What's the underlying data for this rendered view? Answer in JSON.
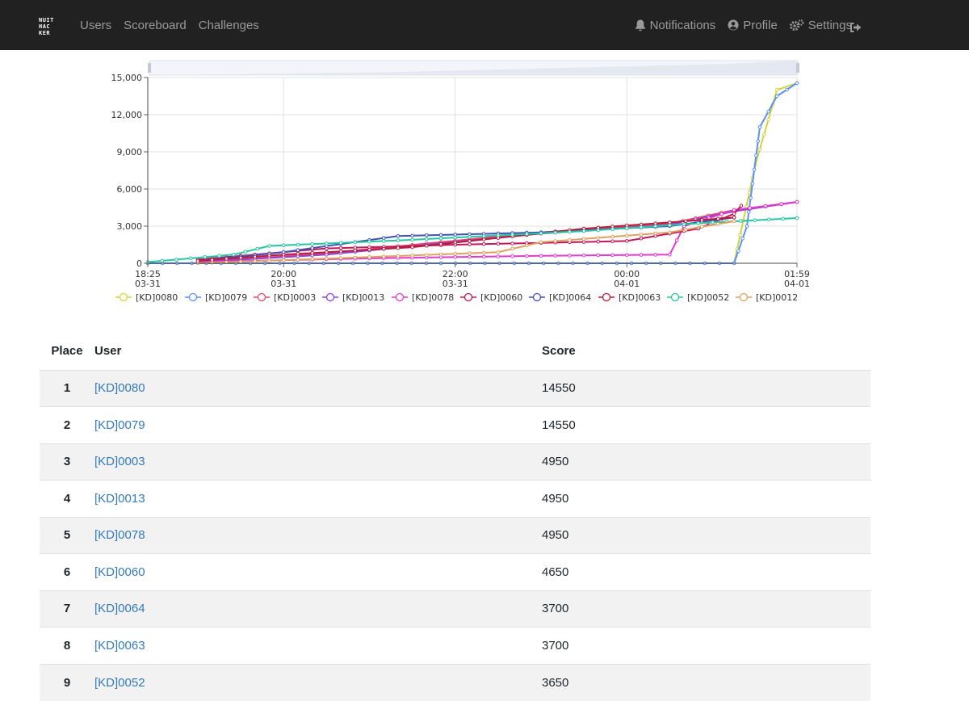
{
  "navbar": {
    "brand_lines": [
      "NUIT",
      "HAC",
      "KER"
    ],
    "links": [
      "Users",
      "Scoreboard",
      "Challenges"
    ],
    "right_links": [
      "Notifications",
      "Profile",
      "Settings"
    ]
  },
  "chart_data": {
    "type": "line",
    "x_ticks": [
      {
        "time": "18:25",
        "date": "03-31"
      },
      {
        "time": "20:00",
        "date": "03-31"
      },
      {
        "time": "22:00",
        "date": "03-31"
      },
      {
        "time": "00:00",
        "date": "04-01"
      },
      {
        "time": "01:59",
        "date": "04-01"
      }
    ],
    "y_ticks": [
      "0",
      "3,000",
      "6,000",
      "9,000",
      "12,000",
      "15,000"
    ],
    "ylim": [
      0,
      15000
    ],
    "xlim": [
      "03-31 18:25",
      "04-01 01:59"
    ],
    "grid": true,
    "legend_position": "bottom",
    "series": [
      {
        "name": "[KD]0080",
        "color": "#d4d438",
        "x": [
          "03-31 18:25",
          "04-01 01:15",
          "04-01 01:30",
          "04-01 01:45",
          "04-01 01:59"
        ],
        "y": [
          0,
          0,
          8000,
          14000,
          14550
        ]
      },
      {
        "name": "[KD]0079",
        "color": "#5b8ff9",
        "x": [
          "03-31 18:25",
          "04-01 01:15",
          "04-01 01:24",
          "04-01 01:33",
          "04-01 01:45",
          "04-01 01:59"
        ],
        "y": [
          0,
          0,
          3000,
          11000,
          13500,
          14550
        ]
      },
      {
        "name": "[KD]0003",
        "color": "#e8486a",
        "x": [
          "03-31 19:00",
          "03-31 20:30",
          "03-31 23:00",
          "04-01 00:30",
          "04-01 01:15",
          "04-01 01:59"
        ],
        "y": [
          100,
          800,
          2500,
          3200,
          4300,
          4950
        ]
      },
      {
        "name": "[KD]0013",
        "color": "#8c44d8",
        "x": [
          "03-31 19:00",
          "03-31 20:30",
          "03-31 23:00",
          "04-01 00:30",
          "04-01 01:15",
          "04-01 01:59"
        ],
        "y": [
          100,
          700,
          2400,
          3100,
          4200,
          4950
        ]
      },
      {
        "name": "[KD]0078",
        "color": "#e23ad0",
        "x": [
          "03-31 19:00",
          "03-31 21:00",
          "03-31 23:00",
          "04-01 00:30",
          "04-01 00:40",
          "04-01 01:15",
          "04-01 01:59"
        ],
        "y": [
          100,
          400,
          600,
          700,
          3000,
          4300,
          4950
        ]
      },
      {
        "name": "[KD]0060",
        "color": "#c2185b",
        "x": [
          "03-31 19:00",
          "03-31 20:30",
          "03-31 22:00",
          "04-01 00:00",
          "04-01 00:50",
          "04-01 01:15",
          "04-01 01:20"
        ],
        "y": [
          300,
          1200,
          1500,
          1800,
          2800,
          4000,
          4650
        ]
      },
      {
        "name": "[KD]0064",
        "color": "#3f51b5",
        "x": [
          "03-31 19:00",
          "03-31 20:00",
          "03-31 21:20",
          "03-31 23:00",
          "04-01 00:30",
          "04-01 01:15"
        ],
        "y": [
          200,
          900,
          2200,
          2500,
          3000,
          3700
        ]
      },
      {
        "name": "[KD]0063",
        "color": "#b71c3c",
        "x": [
          "03-31 19:00",
          "03-31 20:00",
          "03-31 21:30",
          "03-31 23:30",
          "04-01 00:30",
          "04-01 01:15"
        ],
        "y": [
          200,
          700,
          1300,
          2800,
          3300,
          3700
        ]
      },
      {
        "name": "[KD]0052",
        "color": "#26c6a0",
        "x": [
          "03-31 18:25",
          "03-31 19:25",
          "03-31 19:50",
          "03-31 21:30",
          "03-31 23:30",
          "04-01 01:00",
          "04-01 01:59"
        ],
        "y": [
          100,
          700,
          1400,
          1900,
          2600,
          3300,
          3650
        ]
      },
      {
        "name": "[KD]0012",
        "color": "#e0a060",
        "x": [
          "03-31 19:00",
          "03-31 21:00",
          "03-31 22:30",
          "03-31 23:00",
          "04-01 00:30",
          "04-01 01:15"
        ],
        "y": [
          0,
          500,
          900,
          1700,
          2500,
          3400
        ]
      }
    ]
  },
  "table": {
    "headers": [
      "Place",
      "User",
      "Score"
    ],
    "rows": [
      {
        "place": "1",
        "user": "[KD]0080",
        "score": "14550"
      },
      {
        "place": "2",
        "user": "[KD]0079",
        "score": "14550"
      },
      {
        "place": "3",
        "user": "[KD]0003",
        "score": "4950"
      },
      {
        "place": "4",
        "user": "[KD]0013",
        "score": "4950"
      },
      {
        "place": "5",
        "user": "[KD]0078",
        "score": "4950"
      },
      {
        "place": "6",
        "user": "[KD]0060",
        "score": "4650"
      },
      {
        "place": "7",
        "user": "[KD]0064",
        "score": "3700"
      },
      {
        "place": "8",
        "user": "[KD]0063",
        "score": "3700"
      },
      {
        "place": "9",
        "user": "[KD]0052",
        "score": "3650"
      }
    ]
  }
}
